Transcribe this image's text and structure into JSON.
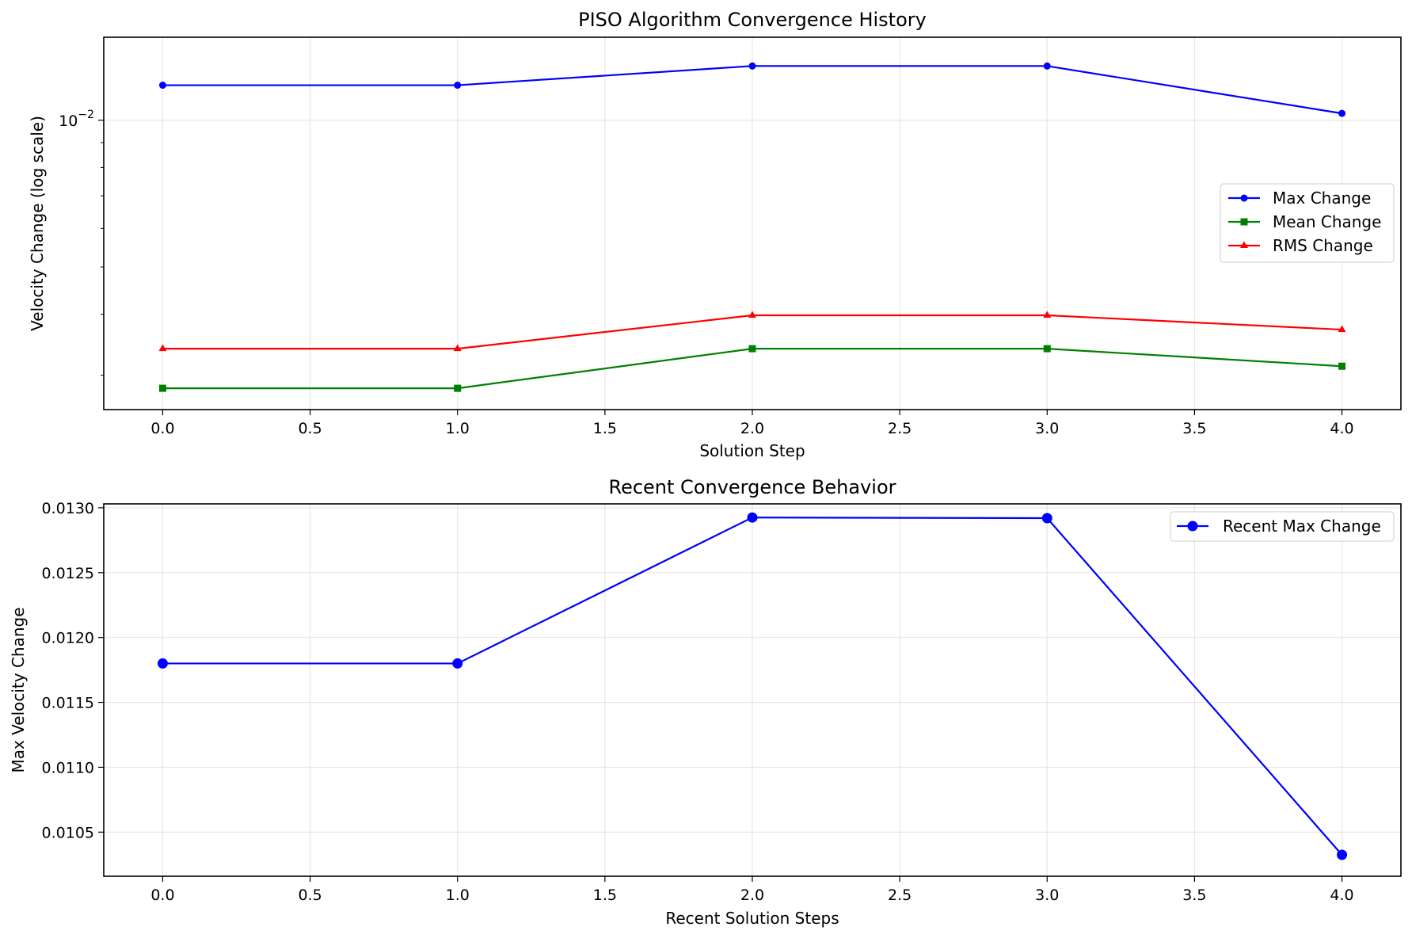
{
  "chart_data": [
    {
      "type": "line",
      "title": "PISO Algorithm Convergence History",
      "xlabel": "Solution Step",
      "ylabel": "Velocity Change (log scale)",
      "yscale": "log",
      "xlim": [
        -0.2,
        4.2
      ],
      "ylim": [
        0.00255,
        0.0148
      ],
      "grid": true,
      "legend_position": "center-right",
      "x": [
        0,
        1,
        2,
        3,
        4
      ],
      "x_ticks": [
        "0.0",
        "0.5",
        "1.0",
        "1.5",
        "2.0",
        "2.5",
        "3.0",
        "3.5",
        "4.0"
      ],
      "y_tick_labels": [
        {
          "value": 0.01,
          "base": "10",
          "exponent": "−2"
        }
      ],
      "series": [
        {
          "name": "Max Change",
          "color": "#0000ff",
          "marker": "circle",
          "values": [
            0.0118,
            0.0118,
            0.01292,
            0.01292,
            0.01033
          ]
        },
        {
          "name": "Mean Change",
          "color": "#008000",
          "marker": "square",
          "values": [
            0.00282,
            0.00282,
            0.0034,
            0.0034,
            0.00313
          ]
        },
        {
          "name": "RMS Change",
          "color": "#ff0000",
          "marker": "triangle",
          "values": [
            0.0034,
            0.0034,
            0.00398,
            0.00398,
            0.00372
          ]
        }
      ]
    },
    {
      "type": "line",
      "title": "Recent Convergence Behavior",
      "xlabel": "Recent Solution Steps",
      "ylabel": "Max Velocity Change",
      "yscale": "linear",
      "xlim": [
        -0.2,
        4.2
      ],
      "ylim": [
        0.01016,
        0.01303
      ],
      "grid": true,
      "legend_position": "top-right",
      "x": [
        0,
        1,
        2,
        3,
        4
      ],
      "x_ticks": [
        "0.0",
        "0.5",
        "1.0",
        "1.5",
        "2.0",
        "2.5",
        "3.0",
        "3.5",
        "4.0"
      ],
      "y_ticks": [
        "0.0105",
        "0.0110",
        "0.0115",
        "0.0120",
        "0.0125",
        "0.0130"
      ],
      "series": [
        {
          "name": "Recent Max Change",
          "color": "#0000ff",
          "marker": "circle",
          "values": [
            0.0118,
            0.0118,
            0.012925,
            0.01292,
            0.010325
          ]
        }
      ]
    }
  ]
}
